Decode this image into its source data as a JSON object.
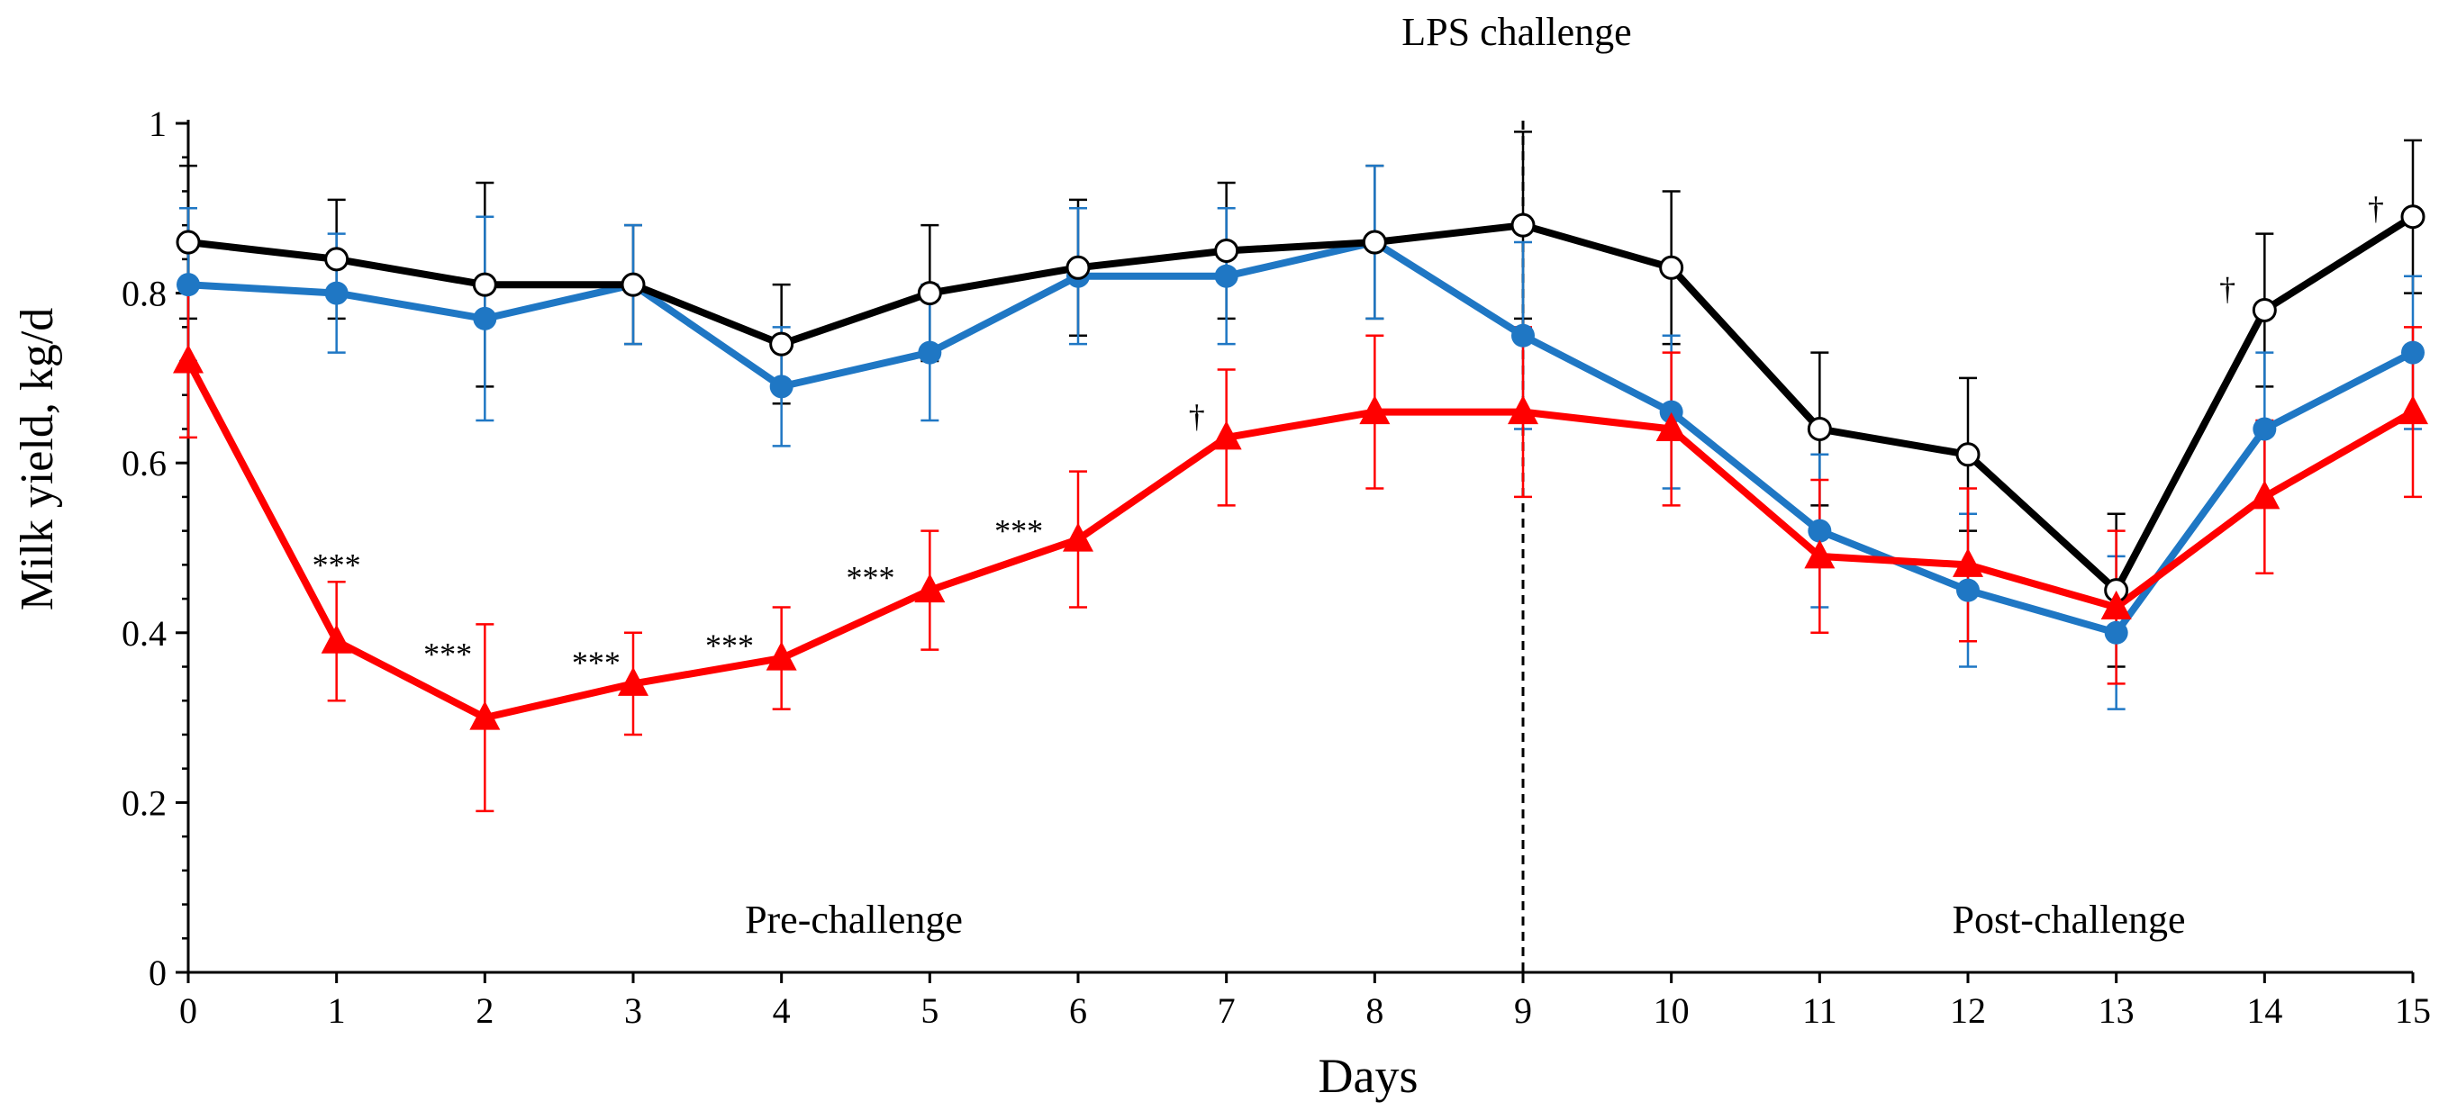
{
  "chart_data": {
    "type": "line",
    "title": "",
    "xlabel": "Days",
    "ylabel": "Milk yield, kg/d",
    "xlim": [
      0,
      15
    ],
    "ylim": [
      0,
      1
    ],
    "x": [
      0,
      1,
      2,
      3,
      4,
      5,
      6,
      7,
      8,
      9,
      10,
      11,
      12,
      13,
      14,
      15
    ],
    "x_tick_labels": [
      "0",
      "1",
      "2",
      "3",
      "4",
      "5",
      "6",
      "7",
      "8",
      "9",
      "10",
      "11",
      "12",
      "13",
      "14",
      "15"
    ],
    "y_ticks": [
      0,
      0.2,
      0.4,
      0.6,
      0.8,
      1
    ],
    "y_tick_labels": [
      "0",
      "0.2",
      "0.4",
      "0.6",
      "0.8",
      "1"
    ],
    "grid": false,
    "legend": "none",
    "series": [
      {
        "name": "Black (open circles)",
        "color": "#000000",
        "marker": "circle-open",
        "values": [
          0.86,
          0.84,
          0.81,
          0.81,
          0.74,
          0.8,
          0.83,
          0.85,
          0.86,
          0.88,
          0.83,
          0.64,
          0.61,
          0.45,
          0.78,
          0.89
        ],
        "errors": [
          0.09,
          0.07,
          0.12,
          0.07,
          0.07,
          0.08,
          0.08,
          0.08,
          0.09,
          0.11,
          0.09,
          0.09,
          0.09,
          0.09,
          0.09,
          0.09
        ]
      },
      {
        "name": "Blue (filled circles)",
        "color": "#1f77c4",
        "marker": "circle-filled",
        "values": [
          0.81,
          0.8,
          0.77,
          0.81,
          0.69,
          0.73,
          0.82,
          0.82,
          0.86,
          0.75,
          0.66,
          0.52,
          0.45,
          0.4,
          0.64,
          0.73
        ],
        "errors": [
          0.09,
          0.07,
          0.12,
          0.07,
          0.07,
          0.08,
          0.08,
          0.08,
          0.09,
          0.11,
          0.09,
          0.09,
          0.09,
          0.09,
          0.09,
          0.09
        ]
      },
      {
        "name": "Red (filled triangles)",
        "color": "#ff0000",
        "marker": "triangle-filled",
        "values": [
          0.72,
          0.39,
          0.3,
          0.34,
          0.37,
          0.45,
          0.51,
          0.63,
          0.66,
          0.66,
          0.64,
          0.49,
          0.48,
          0.43,
          0.56,
          0.66
        ],
        "errors": [
          0.09,
          0.07,
          0.11,
          0.06,
          0.06,
          0.07,
          0.08,
          0.08,
          0.09,
          0.1,
          0.09,
          0.09,
          0.09,
          0.09,
          0.09,
          0.1
        ]
      }
    ],
    "annotations": [
      {
        "text": "***",
        "x": 1.0,
        "y": 0.48
      },
      {
        "text": "***",
        "x": 1.75,
        "y": 0.375
      },
      {
        "text": "***",
        "x": 2.75,
        "y": 0.365
      },
      {
        "text": "***",
        "x": 3.65,
        "y": 0.385
      },
      {
        "text": "***",
        "x": 4.6,
        "y": 0.465
      },
      {
        "text": "***",
        "x": 5.6,
        "y": 0.52
      },
      {
        "text": "†",
        "x": 6.8,
        "y": 0.655
      },
      {
        "text": "†",
        "x": 13.75,
        "y": 0.805
      },
      {
        "text": "†",
        "x": 14.75,
        "y": 0.9
      }
    ],
    "vertical_line": {
      "x": 9,
      "label": "LPS challenge",
      "style": "dashed"
    },
    "region_labels": [
      {
        "text": "Pre-challenge",
        "x": 4.5,
        "y": 0.04
      },
      {
        "text": "Post-challenge",
        "x": 13.0,
        "y": 0.04
      }
    ]
  }
}
